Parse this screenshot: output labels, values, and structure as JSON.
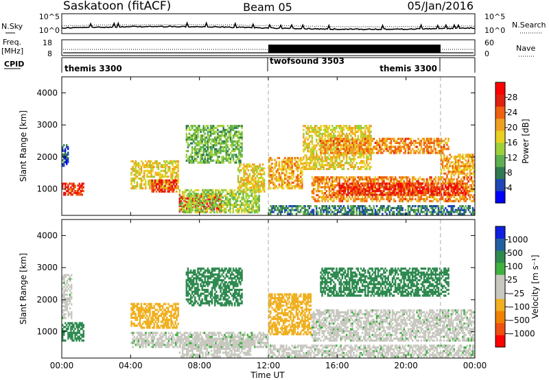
{
  "header": {
    "station": "Saskatoon (fitACF)",
    "beam": "Beam 05",
    "date": "05/Jan/2016"
  },
  "top_panels": {
    "nsky_label": "N.Sky",
    "nsearch_label": "N.Search",
    "nsky_ticks": [
      "10^5",
      "10^0"
    ],
    "nsky_right_ticks": [
      "10^5",
      "10^0"
    ],
    "freq_label": "Freq.",
    "freq_unit": "[MHz]",
    "freq_ticks": [
      "18",
      "8"
    ],
    "nave_label": "Nave",
    "nave_ticks": [
      "60",
      "0"
    ],
    "cpid_label": "CPID",
    "modes": [
      {
        "label": "themis 3300",
        "start_hour": 0,
        "end_hour": 12
      },
      {
        "label": "twofsound 3503",
        "start_hour": 12,
        "end_hour": 22
      },
      {
        "label": "themis 3300",
        "start_hour": 22,
        "end_hour": 24
      }
    ]
  },
  "colors": {
    "power_scale": [
      "#0000ff",
      "#1e46b4",
      "#2f7a50",
      "#5fb04f",
      "#9fd03a",
      "#e8d020",
      "#f0a020",
      "#f06010",
      "#e02010",
      "#ff0000"
    ],
    "velocity_scale": [
      "#ff0000",
      "#f05010",
      "#f08000",
      "#f0b020",
      "#c8c8c0",
      "#c8c8c0",
      "#40b040",
      "#2f8a50",
      "#2060a0",
      "#1020e0"
    ],
    "grid_dash": "#aaaaaa"
  },
  "power_colorbar": {
    "title": "Power [dB]",
    "ticks": [
      "28",
      "24",
      "20",
      "16",
      "12",
      "8",
      "4"
    ]
  },
  "velocity_colorbar": {
    "title": "Velocity [m s⁻¹]",
    "ticks": [
      "1000",
      "500",
      "100",
      "25",
      "−25",
      "−100",
      "−500",
      "−1000"
    ]
  },
  "chart_data": [
    {
      "type": "heatmap",
      "name_quantity": "Power",
      "ylabel": "Slant Range [km]",
      "ylim": [
        180,
        4500
      ],
      "yticks": [
        1000,
        2000,
        3000,
        4000
      ],
      "xlim": [
        0,
        24
      ],
      "xticks": [
        0,
        4,
        8,
        12,
        16,
        20,
        24
      ],
      "xticklabels": [
        "00:00",
        "04:00",
        "08:00",
        "12:00",
        "16:00",
        "20:00",
        "00:00"
      ],
      "vlines": [
        12,
        22
      ],
      "regions": [
        {
          "t0": 0.0,
          "t1": 1.3,
          "r0": 800,
          "r1": 1200,
          "value": 26
        },
        {
          "t0": 0.0,
          "t1": 0.4,
          "r0": 1700,
          "r1": 2400,
          "value": 6
        },
        {
          "t0": 4.0,
          "t1": 6.8,
          "r0": 1000,
          "r1": 1900,
          "value": 18
        },
        {
          "t0": 5.2,
          "t1": 6.7,
          "r0": 900,
          "r1": 1300,
          "value": 26
        },
        {
          "t0": 6.8,
          "t1": 9.3,
          "r0": 280,
          "r1": 850,
          "value": 28
        },
        {
          "t0": 6.8,
          "t1": 11.5,
          "r0": 250,
          "r1": 1000,
          "value": 14
        },
        {
          "t0": 7.2,
          "t1": 10.5,
          "r0": 1800,
          "r1": 3000,
          "value": 12
        },
        {
          "t0": 10.2,
          "t1": 11.8,
          "r0": 900,
          "r1": 1800,
          "value": 18
        },
        {
          "t0": 12.0,
          "t1": 14.0,
          "r0": 1000,
          "r1": 2000,
          "value": 20
        },
        {
          "t0": 14.0,
          "t1": 18.0,
          "r0": 1600,
          "r1": 3000,
          "value": 18
        },
        {
          "t0": 15.0,
          "t1": 22.5,
          "r0": 2100,
          "r1": 2600,
          "value": 22
        },
        {
          "t0": 14.5,
          "t1": 24.0,
          "r0": 600,
          "r1": 1400,
          "value": 22
        },
        {
          "t0": 16.0,
          "t1": 23.5,
          "r0": 800,
          "r1": 1200,
          "value": 27
        },
        {
          "t0": 12.0,
          "t1": 24.0,
          "r0": 200,
          "r1": 500,
          "value": 8
        },
        {
          "t0": 22.0,
          "t1": 24.0,
          "r0": 1400,
          "r1": 2100,
          "value": 20
        }
      ]
    },
    {
      "type": "heatmap",
      "name_quantity": "Velocity",
      "ylabel": "Slant Range [km]",
      "ylim": [
        180,
        4500
      ],
      "yticks": [
        1000,
        2000,
        3000,
        4000
      ],
      "xlim": [
        0,
        24
      ],
      "xticks": [
        0,
        4,
        8,
        12,
        16,
        20,
        24
      ],
      "xticklabels": [
        "00:00",
        "04:00",
        "08:00",
        "12:00",
        "16:00",
        "20:00",
        "00:00"
      ],
      "xlabel": "Time UT",
      "vlines": [
        12,
        22
      ],
      "regions": [
        {
          "t0": 0.0,
          "t1": 1.3,
          "r0": 700,
          "r1": 1300,
          "value": 200
        },
        {
          "t0": 0.0,
          "t1": 0.6,
          "r0": 1400,
          "r1": 2800,
          "value": 0
        },
        {
          "t0": 4.0,
          "t1": 6.8,
          "r0": 1100,
          "r1": 1900,
          "value": -150
        },
        {
          "t0": 4.0,
          "t1": 12.0,
          "r0": 500,
          "r1": 1000,
          "value": 0
        },
        {
          "t0": 6.8,
          "t1": 11.0,
          "r0": 200,
          "r1": 800,
          "value": 0
        },
        {
          "t0": 7.2,
          "t1": 10.5,
          "r0": 1800,
          "r1": 3000,
          "value": 150
        },
        {
          "t0": 12.0,
          "t1": 14.5,
          "r0": 900,
          "r1": 2200,
          "value": -300
        },
        {
          "t0": 14.5,
          "t1": 24.0,
          "r0": 700,
          "r1": 1700,
          "value": 0
        },
        {
          "t0": 15.0,
          "t1": 22.5,
          "r0": 2100,
          "r1": 3000,
          "value": 200
        },
        {
          "t0": 12.0,
          "t1": 24.0,
          "r0": 200,
          "r1": 600,
          "value": 0
        }
      ]
    }
  ]
}
